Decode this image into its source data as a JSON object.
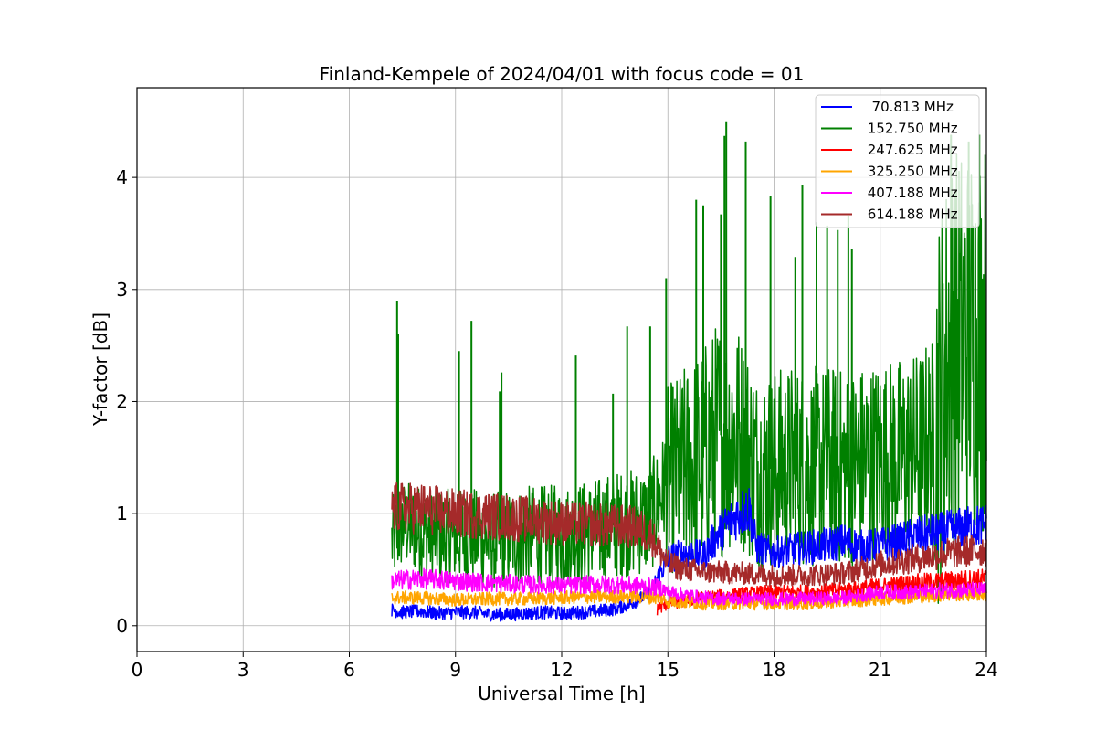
{
  "chart_data": {
    "type": "line",
    "title": "Finland-Kempele of 2024/04/01 with focus code = 01",
    "xlabel": "Universal Time [h]",
    "ylabel": "Y-factor [dB]",
    "xlim": [
      0,
      24
    ],
    "ylim": [
      -0.23,
      4.8
    ],
    "xticks": [
      "0",
      "3",
      "6",
      "9",
      "12",
      "15",
      "18",
      "21",
      "24"
    ],
    "yticks": [
      "0",
      "1",
      "2",
      "3",
      "4"
    ],
    "grid": true,
    "legend_position": "top-right",
    "series": [
      {
        "name": "  70.813 MHz",
        "color": "#0000ff",
        "points": [
          [
            7.2,
            0.14
          ],
          [
            7.5,
            0.12
          ],
          [
            8,
            0.13
          ],
          [
            8.5,
            0.11
          ],
          [
            9,
            0.12
          ],
          [
            9.5,
            0.12
          ],
          [
            10,
            0.1
          ],
          [
            10.5,
            0.1
          ],
          [
            11,
            0.11
          ],
          [
            11.5,
            0.12
          ],
          [
            12,
            0.11
          ],
          [
            12.5,
            0.12
          ],
          [
            13,
            0.13
          ],
          [
            13.5,
            0.15
          ],
          [
            14,
            0.2
          ],
          [
            14.5,
            0.3
          ],
          [
            15,
            0.6
          ],
          [
            15.5,
            0.65
          ],
          [
            16,
            0.62
          ],
          [
            16.5,
            0.85
          ],
          [
            17,
            1.0
          ],
          [
            17.3,
            1.05
          ],
          [
            17.5,
            0.7
          ],
          [
            18,
            0.65
          ],
          [
            18.5,
            0.68
          ],
          [
            19,
            0.7
          ],
          [
            19.5,
            0.72
          ],
          [
            20,
            0.75
          ],
          [
            20.5,
            0.7
          ],
          [
            21,
            0.72
          ],
          [
            21.5,
            0.75
          ],
          [
            22,
            0.8
          ],
          [
            22.5,
            0.82
          ],
          [
            23,
            0.85
          ],
          [
            23.5,
            0.88
          ],
          [
            24,
            0.9
          ]
        ]
      },
      {
        "name": " 152.750 MHz",
        "color": "#008000",
        "points": [
          [
            7.2,
            0.75
          ],
          [
            7.5,
            0.9
          ],
          [
            8,
            0.85
          ],
          [
            8.5,
            0.8
          ],
          [
            9,
            0.8
          ],
          [
            9.5,
            0.8
          ],
          [
            10,
            0.75
          ],
          [
            10.5,
            0.78
          ],
          [
            11,
            0.8
          ],
          [
            11.5,
            0.8
          ],
          [
            12,
            0.8
          ],
          [
            12.5,
            0.82
          ],
          [
            13,
            0.85
          ],
          [
            13.5,
            0.9
          ],
          [
            14,
            0.92
          ],
          [
            14.5,
            0.95
          ],
          [
            15,
            1.3
          ],
          [
            15.5,
            1.4
          ],
          [
            16,
            1.5
          ],
          [
            16.5,
            1.7
          ],
          [
            17,
            1.7
          ],
          [
            17.5,
            1.4
          ],
          [
            18,
            1.4
          ],
          [
            18.5,
            1.45
          ],
          [
            19,
            1.4
          ],
          [
            19.5,
            1.45
          ],
          [
            20,
            1.4
          ],
          [
            20.5,
            1.45
          ],
          [
            21,
            1.5
          ],
          [
            21.5,
            1.5
          ],
          [
            22,
            1.55
          ],
          [
            22.5,
            1.7
          ],
          [
            23,
            2.5
          ],
          [
            23.5,
            2.55
          ],
          [
            24,
            2.6
          ]
        ],
        "band_halfwidth": [
          [
            7.2,
            0.4
          ],
          [
            14.9,
            0.5
          ],
          [
            15,
            0.85
          ],
          [
            16.5,
            1.1
          ],
          [
            17.5,
            0.9
          ],
          [
            22.5,
            0.9
          ],
          [
            22.6,
            1.8
          ],
          [
            24,
            1.8
          ]
        ],
        "spikes": [
          [
            7.35,
            2.9
          ],
          [
            7.38,
            2.6
          ],
          [
            9.1,
            2.45
          ],
          [
            9.45,
            2.72
          ],
          [
            10.25,
            2.09
          ],
          [
            10.3,
            2.26
          ],
          [
            12.4,
            2.41
          ],
          [
            13.45,
            2.07
          ],
          [
            13.85,
            2.67
          ],
          [
            14.5,
            2.67
          ],
          [
            14.95,
            3.1
          ],
          [
            15.8,
            3.8
          ],
          [
            16.0,
            3.75
          ],
          [
            16.5,
            3.67
          ],
          [
            16.6,
            4.37
          ],
          [
            16.65,
            4.5
          ],
          [
            17.2,
            4.32
          ],
          [
            17.9,
            3.83
          ],
          [
            18.6,
            3.29
          ],
          [
            18.8,
            3.93
          ],
          [
            19.2,
            3.6
          ],
          [
            19.5,
            3.57
          ],
          [
            19.8,
            3.53
          ],
          [
            20.1,
            3.66
          ],
          [
            20.2,
            3.36
          ],
          [
            23.0,
            4.38
          ],
          [
            23.5,
            4.32
          ],
          [
            23.8,
            4.38
          ]
        ]
      },
      {
        "name": " 247.625 MHz",
        "color": "#ff0000",
        "points": [
          [
            14.7,
            0.15
          ],
          [
            15,
            0.2
          ],
          [
            16,
            0.25
          ],
          [
            17,
            0.28
          ],
          [
            18,
            0.3
          ],
          [
            19,
            0.3
          ],
          [
            20,
            0.32
          ],
          [
            21,
            0.35
          ],
          [
            22,
            0.38
          ],
          [
            23,
            0.4
          ],
          [
            24,
            0.42
          ]
        ]
      },
      {
        "name": " 325.250 MHz",
        "color": "#ffa500",
        "points": [
          [
            7.2,
            0.25
          ],
          [
            8,
            0.25
          ],
          [
            9,
            0.23
          ],
          [
            10,
            0.24
          ],
          [
            11,
            0.24
          ],
          [
            12,
            0.25
          ],
          [
            13,
            0.26
          ],
          [
            14,
            0.26
          ],
          [
            14.8,
            0.25
          ],
          [
            15,
            0.22
          ],
          [
            16,
            0.2
          ],
          [
            17,
            0.2
          ],
          [
            18,
            0.2
          ],
          [
            19,
            0.2
          ],
          [
            20,
            0.22
          ],
          [
            21,
            0.24
          ],
          [
            22,
            0.26
          ],
          [
            23,
            0.28
          ],
          [
            24,
            0.28
          ]
        ]
      },
      {
        "name": " 407.188 MHz",
        "color": "#ff00ff",
        "points": [
          [
            7.2,
            0.4
          ],
          [
            8,
            0.42
          ],
          [
            9,
            0.4
          ],
          [
            10,
            0.38
          ],
          [
            11,
            0.37
          ],
          [
            12,
            0.36
          ],
          [
            13,
            0.37
          ],
          [
            14,
            0.36
          ],
          [
            14.8,
            0.34
          ],
          [
            15,
            0.3
          ],
          [
            16,
            0.25
          ],
          [
            17,
            0.24
          ],
          [
            18,
            0.24
          ],
          [
            19,
            0.24
          ],
          [
            20,
            0.25
          ],
          [
            21,
            0.3
          ],
          [
            22,
            0.3
          ],
          [
            23,
            0.32
          ],
          [
            24,
            0.32
          ]
        ]
      },
      {
        "name": " 614.188 MHz",
        "color": "#a52a2a",
        "points": [
          [
            7.2,
            1.05
          ],
          [
            8,
            1.05
          ],
          [
            9,
            1.0
          ],
          [
            10,
            0.98
          ],
          [
            11,
            0.95
          ],
          [
            12,
            0.92
          ],
          [
            13,
            0.9
          ],
          [
            14,
            0.88
          ],
          [
            14.5,
            0.82
          ],
          [
            15,
            0.55
          ],
          [
            15.5,
            0.5
          ],
          [
            16,
            0.48
          ],
          [
            17,
            0.47
          ],
          [
            18,
            0.45
          ],
          [
            19,
            0.45
          ],
          [
            20,
            0.47
          ],
          [
            21,
            0.55
          ],
          [
            22,
            0.6
          ],
          [
            23,
            0.65
          ],
          [
            24,
            0.68
          ]
        ]
      }
    ]
  }
}
